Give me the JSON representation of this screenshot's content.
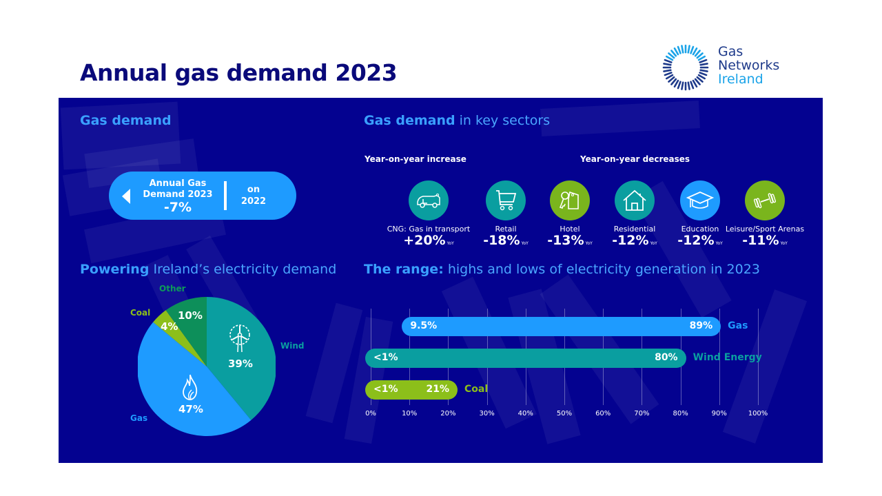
{
  "title": "Annual gas demand 2023",
  "logo": {
    "line1": "Gas",
    "line2": "Networks",
    "line3": "Ireland",
    "colors": {
      "dark": "#1e3a8a",
      "light": "#1aa3e8"
    }
  },
  "gas_demand": {
    "heading": "Gas demand",
    "pill": {
      "line1": "Annual Gas",
      "line2": "Demand 2023",
      "value": "-7%",
      "compare_line1": "on",
      "compare_line2": "2022",
      "icon": "arrow-left-icon"
    }
  },
  "sectors": {
    "heading_bold": "Gas demand",
    "heading_light": "in key sectors",
    "increase_label": "Year-on-year increase",
    "decrease_label": "Year-on-year decreases",
    "items": [
      {
        "label": "CNG: Gas in transport",
        "value": "+20%",
        "unit": "YoY",
        "icon": "van-icon",
        "color": "#0a9ea0"
      },
      {
        "label": "Retail",
        "value": "-18%",
        "unit": "YoY",
        "icon": "shopping-cart-icon",
        "color": "#0a9ea0"
      },
      {
        "label": "Hotel",
        "value": "-13%",
        "unit": "YoY",
        "icon": "hotel-key-icon",
        "color": "#7ab51d"
      },
      {
        "label": "Residential",
        "value": "-12%",
        "unit": "YoY",
        "icon": "house-icon",
        "color": "#0a9ea0"
      },
      {
        "label": "Education",
        "value": "-12%",
        "unit": "YoY",
        "icon": "graduation-cap-icon",
        "color": "#1e9bff"
      },
      {
        "label": "Leisure/Sport Arenas",
        "value": "-11%",
        "unit": "YoY",
        "icon": "dumbbell-icon",
        "color": "#7ab51d"
      }
    ]
  },
  "electricity": {
    "heading_bold": "Powering",
    "heading_light": "Ireland’s electricity demand"
  },
  "range": {
    "heading_bold": "The range:",
    "heading_light": "highs and lows of electricity generation in 2023"
  },
  "chart_data": [
    {
      "type": "pie",
      "title": "Powering Ireland’s electricity demand",
      "slices": [
        {
          "name": "Wind",
          "value": 39,
          "label": "39%",
          "color": "#0a9ea0",
          "icon": "wind-turbine-icon"
        },
        {
          "name": "Gas",
          "value": 47,
          "label": "47%",
          "color": "#1e9bff",
          "icon": "flame-icon"
        },
        {
          "name": "Coal",
          "value": 4,
          "label": "4%",
          "color": "#8cbf1a"
        },
        {
          "name": "Other",
          "value": 10,
          "label": "10%",
          "color": "#0d8f5a"
        }
      ]
    },
    {
      "type": "bar",
      "orientation": "horizontal-range",
      "title": "The range: highs and lows of electricity generation in 2023",
      "xlim": [
        0,
        100
      ],
      "x_ticks": [
        "0%",
        "10%",
        "20%",
        "30%",
        "40%",
        "50%",
        "60%",
        "70%",
        "80%",
        "90%",
        "100%"
      ],
      "grid": true,
      "series": [
        {
          "name": "Gas",
          "low": 9.5,
          "high": 89,
          "low_label": "9.5%",
          "high_label": "89%",
          "color": "#1e9bff"
        },
        {
          "name": "Wind Energy",
          "low": 0,
          "high": 80,
          "low_label": "<1%",
          "high_label": "80%",
          "color": "#0a9ea0"
        },
        {
          "name": "Coal",
          "low": 0,
          "high": 21,
          "low_label": "<1%",
          "high_label": "21%",
          "color": "#8cbf1a"
        }
      ]
    }
  ]
}
